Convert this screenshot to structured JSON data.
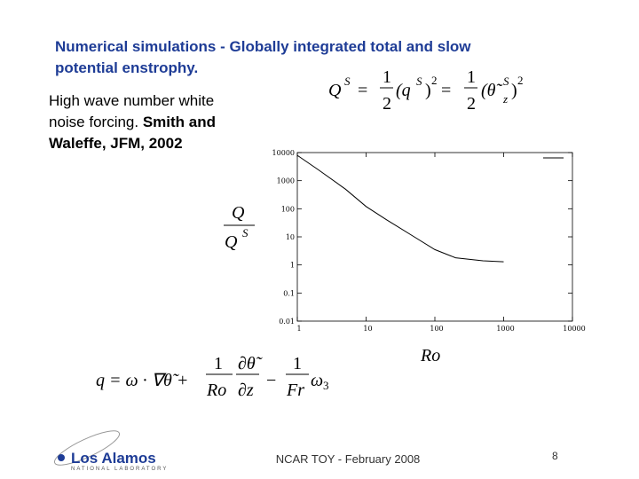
{
  "slide": {
    "title_lines": [
      "Numerical simulations - Globally integrated total and slow",
      "potential enstrophy."
    ],
    "body_lines": [
      "High wave number white",
      "noise forcing.  ",
      "Smith and",
      "Waleffe, JFM, 2002"
    ],
    "eq_top": [
      "Q",
      "S",
      "=",
      "1",
      "2",
      "(q",
      "S",
      ")",
      "2",
      "=",
      "1",
      "2",
      "(θ̃",
      "S",
      "z",
      ")",
      "2"
    ],
    "eq_ylabel": [
      "Q",
      "Q",
      "S"
    ],
    "eq_bottom": [
      "q = ω · ∇θ̃ +",
      "1",
      "Ro",
      "∂θ̃",
      "∂z",
      "−",
      "1",
      "Fr",
      "ω",
      "3"
    ],
    "footer": "NCAR TOY - February 2008",
    "page_number": "8",
    "logo": [
      "Los Alamos",
      "NATIONAL LABORATORY"
    ]
  },
  "chart_data": {
    "type": "line",
    "x_label": "Ro",
    "x": [
      1,
      2,
      5,
      10,
      20,
      50,
      100,
      200,
      500,
      1000
    ],
    "series": [
      {
        "name": "Q/Q^S",
        "color": "#000000",
        "values": [
          8000,
          2500,
          500,
          120,
          40,
          10,
          3.5,
          1.8,
          1.4,
          1.3
        ]
      }
    ],
    "xlim": [
      1,
      10000
    ],
    "xticks": [
      1,
      10,
      100,
      1000,
      10000
    ],
    "ylim": [
      0.01,
      10000
    ],
    "yticks": [
      0.01,
      0.1,
      1,
      10,
      100,
      1000,
      10000
    ],
    "xscale": "log",
    "yscale": "log"
  }
}
